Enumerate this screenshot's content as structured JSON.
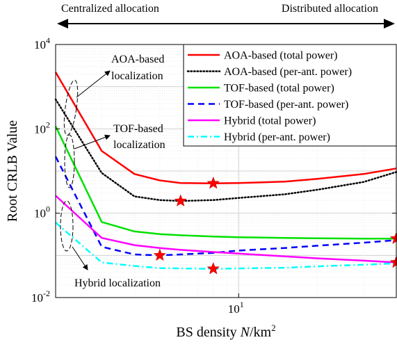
{
  "chart_data": {
    "type": "line",
    "y_scale": "log",
    "x_scale": "log",
    "xlabel": "BS density N/km²",
    "xlabel_parts": {
      "prefix": "BS density ",
      "var": "N",
      "unit": "/km",
      "exp": "2"
    },
    "ylabel": "Root CRLB Value",
    "xlim": [
      2,
      40
    ],
    "ylim": [
      0.01,
      10000
    ],
    "x_ticks": [
      {
        "value": 10,
        "base": "10",
        "exp": "1"
      }
    ],
    "y_ticks": [
      {
        "value": 0.01,
        "base": "10",
        "exp": "-2"
      },
      {
        "value": 1,
        "base": "10",
        "exp": "0"
      },
      {
        "value": 100,
        "base": "10",
        "exp": "2"
      },
      {
        "value": 10000,
        "base": "10",
        "exp": "4"
      }
    ],
    "grid": true,
    "legend_position": "top-right",
    "top_arrow": {
      "left_label": "Centralized allocation",
      "right_label": "Distributed allocation"
    },
    "series": [
      {
        "name": "AOA-based (total power)",
        "color": "#ff0000",
        "style": "solid",
        "x": [
          2,
          3,
          4,
          5,
          6,
          8,
          10,
          15,
          20,
          30,
          40
        ],
        "y": [
          2200,
          30,
          8.5,
          6,
          5.2,
          5.1,
          5.2,
          5.6,
          6.5,
          8.5,
          11.5
        ]
      },
      {
        "name": "AOA-based (per-ant. power)",
        "color": "#000000",
        "style": "dotted",
        "x": [
          2,
          3,
          4,
          5,
          6,
          8,
          10,
          15,
          20,
          30,
          40
        ],
        "y": [
          500,
          9,
          2.5,
          2.05,
          1.95,
          2.05,
          2.3,
          2.8,
          3.6,
          5.5,
          9.5
        ]
      },
      {
        "name": "TOF-based (total power)",
        "color": "#00e000",
        "style": "solid",
        "x": [
          2,
          3,
          4,
          5,
          6,
          8,
          10,
          15,
          20,
          30,
          40
        ],
        "y": [
          115,
          0.62,
          0.37,
          0.32,
          0.3,
          0.28,
          0.27,
          0.26,
          0.255,
          0.25,
          0.25
        ]
      },
      {
        "name": "TOF-based (per-ant. power)",
        "color": "#0000ff",
        "style": "dashed",
        "x": [
          2,
          3,
          4,
          5,
          6,
          8,
          10,
          15,
          20,
          30,
          40
        ],
        "y": [
          22,
          0.16,
          0.105,
          0.1,
          0.105,
          0.115,
          0.13,
          0.15,
          0.17,
          0.2,
          0.23
        ]
      },
      {
        "name": "Hybrid (total power)",
        "color": "#ff00ff",
        "style": "solid",
        "x": [
          2,
          3,
          4,
          5,
          6,
          8,
          10,
          15,
          20,
          30,
          40
        ],
        "y": [
          2.6,
          0.26,
          0.175,
          0.15,
          0.135,
          0.12,
          0.11,
          0.095,
          0.085,
          0.075,
          0.068
        ]
      },
      {
        "name": "Hybrid (per-ant. power)",
        "color": "#00ffff",
        "style": "dashdot",
        "x": [
          2,
          3,
          4,
          5,
          6,
          8,
          10,
          15,
          20,
          30,
          40
        ],
        "y": [
          0.6,
          0.068,
          0.056,
          0.05,
          0.049,
          0.048,
          0.049,
          0.051,
          0.055,
          0.06,
          0.065
        ]
      }
    ],
    "optimum_markers": [
      {
        "series": "AOA-based (total power)",
        "x": 8,
        "y": 5.1
      },
      {
        "series": "AOA-based (per-ant. power)",
        "x": 6,
        "y": 1.95
      },
      {
        "series": "TOF-based (total power)",
        "x": 40,
        "y": 0.25
      },
      {
        "series": "TOF-based (per-ant. power)",
        "x": 5,
        "y": 0.1
      },
      {
        "series": "Hybrid (total power)",
        "x": 40,
        "y": 0.068
      },
      {
        "series": "Hybrid (per-ant. power)",
        "x": 8,
        "y": 0.048
      }
    ],
    "annotations": [
      {
        "lines": [
          "AOA-based",
          "localization"
        ]
      },
      {
        "lines": [
          "TOF-based",
          "localization"
        ]
      },
      {
        "lines": [
          "Hybrid localization"
        ]
      }
    ]
  }
}
